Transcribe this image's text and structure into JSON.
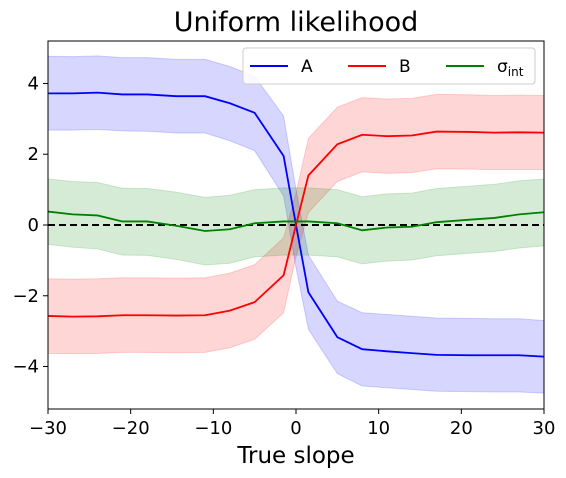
{
  "chart_data": {
    "type": "line",
    "title": "Uniform likelihood",
    "xlabel": "True slope",
    "ylabel": "",
    "xlim": [
      -30,
      30
    ],
    "ylim": [
      -5.2,
      5.2
    ],
    "xticks": [
      -30,
      -20,
      -10,
      0,
      10,
      20,
      30
    ],
    "xtick_labels": [
      "−30",
      "−20",
      "−10",
      "0",
      "10",
      "20",
      "30"
    ],
    "yticks": [
      -4,
      -2,
      0,
      2,
      4
    ],
    "ytick_labels": [
      "−4",
      "−2",
      "0",
      "2",
      "4"
    ],
    "grid": false,
    "legend_position": "upper-right",
    "reference_line": {
      "y": 0,
      "style": "dashed",
      "color": "#000000"
    },
    "x": [
      -30,
      -27,
      -24,
      -21,
      -18,
      -14.5,
      -11,
      -8,
      -5,
      -1.5,
      0,
      1.5,
      5,
      8,
      11,
      14,
      17,
      21,
      24,
      27,
      30
    ],
    "series": [
      {
        "name": "A",
        "color": "#0000ff",
        "values": [
          3.72,
          3.72,
          3.74,
          3.69,
          3.69,
          3.64,
          3.64,
          3.44,
          3.17,
          1.95,
          0.0,
          -1.9,
          -3.17,
          -3.51,
          -3.57,
          -3.62,
          -3.67,
          -3.68,
          -3.68,
          -3.68,
          -3.72
        ],
        "lower": [
          2.68,
          2.68,
          2.7,
          2.66,
          2.65,
          2.6,
          2.6,
          2.38,
          2.1,
          0.82,
          -1.2,
          -2.95,
          -4.2,
          -4.55,
          -4.6,
          -4.65,
          -4.7,
          -4.71,
          -4.72,
          -4.72,
          -4.75
        ],
        "upper": [
          4.77,
          4.76,
          4.78,
          4.73,
          4.73,
          4.68,
          4.68,
          4.48,
          4.2,
          3.08,
          1.0,
          -0.85,
          -2.15,
          -2.48,
          -2.53,
          -2.58,
          -2.63,
          -2.64,
          -2.65,
          -2.65,
          -2.7
        ]
      },
      {
        "name": "B",
        "color": "#ff0000",
        "values": [
          -2.57,
          -2.59,
          -2.58,
          -2.55,
          -2.55,
          -2.56,
          -2.55,
          -2.42,
          -2.18,
          -1.42,
          0.0,
          1.4,
          2.28,
          2.55,
          2.51,
          2.53,
          2.64,
          2.63,
          2.61,
          2.62,
          2.61
        ],
        "lower": [
          -3.63,
          -3.64,
          -3.63,
          -3.6,
          -3.6,
          -3.61,
          -3.6,
          -3.47,
          -3.23,
          -2.48,
          -0.9,
          0.35,
          1.23,
          1.5,
          1.46,
          1.48,
          1.59,
          1.58,
          1.56,
          1.57,
          1.56
        ],
        "upper": [
          -1.52,
          -1.53,
          -1.52,
          -1.49,
          -1.49,
          -1.5,
          -1.49,
          -1.36,
          -1.12,
          -0.36,
          0.9,
          2.45,
          3.33,
          3.6,
          3.56,
          3.58,
          3.69,
          3.68,
          3.66,
          3.67,
          3.66
        ]
      },
      {
        "name": "σ_int",
        "label_main": "σ",
        "label_sub": "int",
        "color": "#008000",
        "values": [
          0.38,
          0.3,
          0.27,
          0.1,
          0.1,
          -0.02,
          -0.17,
          -0.12,
          0.05,
          0.1,
          0.1,
          0.1,
          0.05,
          -0.15,
          -0.07,
          -0.05,
          0.08,
          0.15,
          0.2,
          0.3,
          0.36
        ],
        "lower": [
          -0.55,
          -0.63,
          -0.68,
          -0.85,
          -0.86,
          -0.97,
          -1.13,
          -1.08,
          -0.9,
          -0.85,
          -0.85,
          -0.85,
          -0.9,
          -1.1,
          -1.02,
          -0.99,
          -0.87,
          -0.8,
          -0.75,
          -0.65,
          -0.59
        ],
        "upper": [
          1.3,
          1.23,
          1.2,
          1.04,
          1.03,
          0.93,
          0.78,
          0.84,
          1.0,
          1.05,
          1.05,
          1.05,
          1.0,
          0.8,
          0.88,
          0.9,
          1.03,
          1.1,
          1.15,
          1.25,
          1.3
        ]
      }
    ]
  }
}
